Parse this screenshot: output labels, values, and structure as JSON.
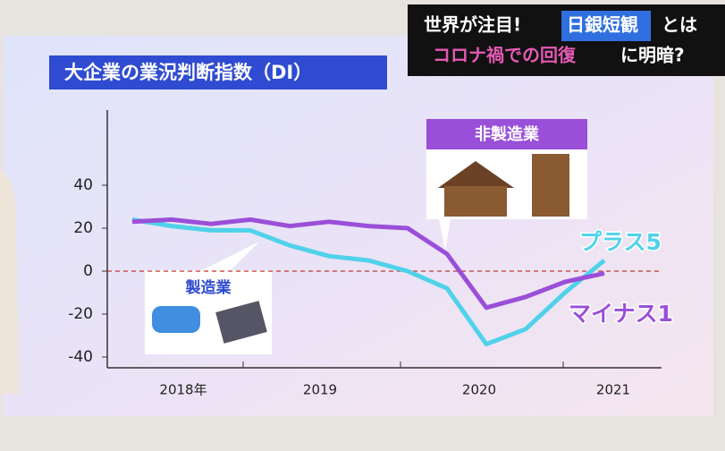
{
  "caption": {
    "line1_a": "世界が注目!",
    "line1_b": "日銀短観",
    "line1_c": "とは",
    "line2_a": "コロナ禍での回復",
    "line2_b": "に明暗?"
  },
  "chart_data": {
    "type": "line",
    "title": "大企業の業況判断指数（DI）",
    "categories": [
      null,
      null,
      null,
      null,
      null,
      null,
      null,
      null,
      null,
      null,
      null,
      null,
      null
    ],
    "year_labels": [
      "2018年",
      "2019",
      "2020",
      "2021"
    ],
    "series": [
      {
        "name": "製造業",
        "color": "#4fd2ea",
        "values": [
          24,
          21,
          19,
          19,
          12,
          7,
          5,
          0,
          -8,
          -34,
          -27,
          -10,
          5
        ],
        "end_label": "プラス5"
      },
      {
        "name": "非製造業",
        "color": "#9a4fd8",
        "values": [
          23,
          24,
          22,
          24,
          21,
          23,
          21,
          20,
          8,
          -17,
          -12,
          -5,
          -1
        ],
        "end_label": "マイナス1"
      }
    ],
    "ylim": [
      -45,
      75
    ],
    "yticks": [
      -40,
      -20,
      0,
      20,
      40
    ],
    "zero_line": true
  }
}
